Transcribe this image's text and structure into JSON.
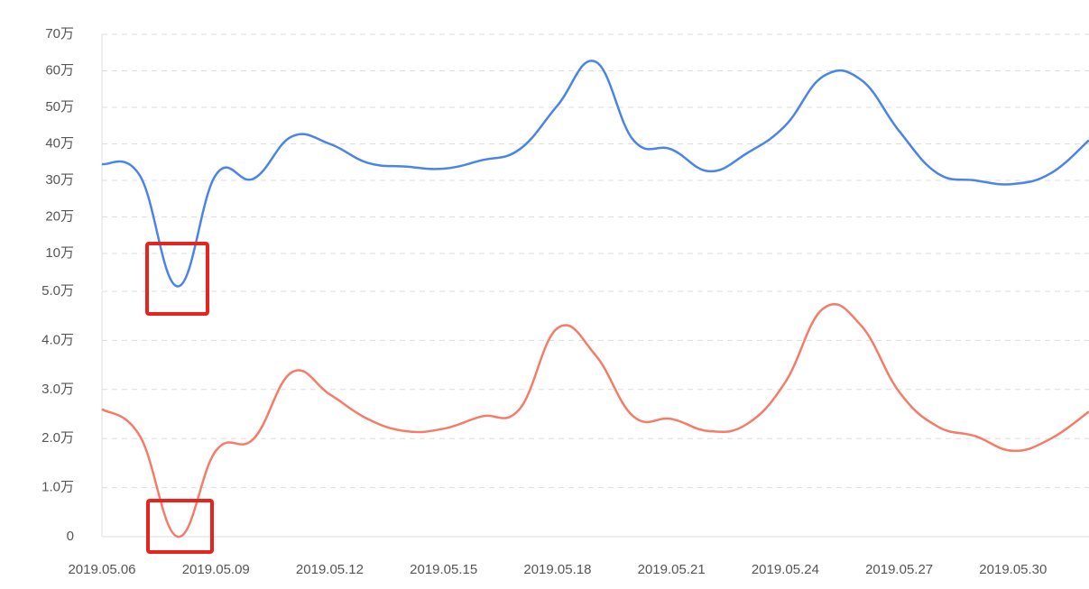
{
  "chart_data": [
    {
      "type": "line",
      "series": [
        {
          "name": null,
          "color": "#4a84e8",
          "values": [
            34.5,
            31.3,
            1,
            31.5,
            30.5,
            42,
            40,
            34.8,
            33.8,
            33.2,
            35.5,
            38.5,
            50.5,
            62.5,
            41,
            38.5,
            32.5,
            37.5,
            45,
            58.5,
            57.5,
            43.5,
            32,
            30,
            29,
            32,
            41
          ]
        }
      ],
      "ylim": [
        0,
        70
      ],
      "yticks": [
        {
          "value": 10,
          "label": "10万"
        },
        {
          "value": 20,
          "label": "20万"
        },
        {
          "value": 30,
          "label": "30万"
        },
        {
          "value": 40,
          "label": "40万"
        },
        {
          "value": 50,
          "label": "50万"
        },
        {
          "value": 60,
          "label": "60万"
        },
        {
          "value": 70,
          "label": "70万"
        }
      ],
      "grid": true
    },
    {
      "type": "line",
      "categories": [
        "2019.05.06",
        null,
        null,
        "2019.05.09",
        null,
        null,
        "2019.05.12",
        null,
        null,
        "2019.05.15",
        null,
        null,
        "2019.05.18",
        null,
        null,
        "2019.05.21",
        null,
        null,
        "2019.05.24",
        null,
        null,
        "2019.05.27",
        null,
        null,
        "2019.05.30",
        null,
        null
      ],
      "series": [
        {
          "name": null,
          "color": "#f47c68",
          "values": [
            2.6,
            2.05,
            0,
            1.75,
            2.0,
            3.35,
            2.9,
            2.4,
            2.15,
            2.2,
            2.45,
            2.6,
            4.25,
            3.7,
            2.45,
            2.4,
            2.15,
            2.3,
            3.15,
            4.65,
            4.3,
            2.95,
            2.25,
            2.05,
            1.75,
            2.0,
            2.55
          ]
        }
      ],
      "ylim": [
        0,
        5
      ],
      "yticks": [
        0,
        {
          "value": 1,
          "label": "1.0万"
        },
        {
          "value": 2,
          "label": "2.0万"
        },
        {
          "value": 3,
          "label": "3.0万"
        },
        {
          "value": 4,
          "label": "4.0万"
        },
        {
          "value": 5,
          "label": "5.0万"
        }
      ],
      "grid": true
    }
  ]
}
